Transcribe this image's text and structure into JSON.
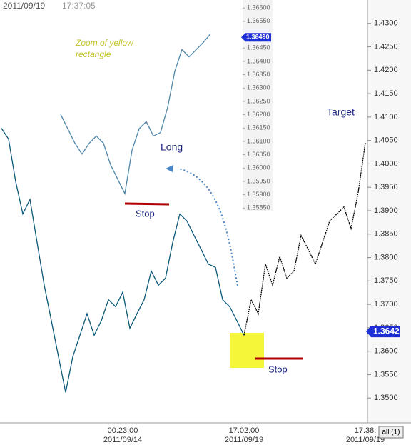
{
  "header": {
    "date": "2011/09/19",
    "time": "17:37:05"
  },
  "annotations": {
    "zoom_note": "Zoom of yellow rectangle",
    "long": "Long",
    "stop_zoom": "Stop",
    "stop_main": "Stop",
    "target": "Target"
  },
  "button": "all (1)",
  "chart_data": [
    {
      "type": "line",
      "categories": [
        null,
        null,
        null,
        null,
        null,
        null,
        null,
        null,
        null,
        null,
        null,
        null,
        null,
        null,
        null,
        null,
        null,
        "00:23:00",
        null,
        null,
        null,
        null,
        null,
        null,
        null,
        null,
        null,
        null,
        null,
        null,
        null,
        null,
        null,
        null,
        "17:02:00",
        null,
        null,
        null,
        null,
        null,
        null,
        null,
        null,
        null,
        null,
        null,
        null,
        null,
        null,
        null,
        null,
        "17:38:"
      ],
      "dates": [
        null,
        null,
        null,
        null,
        null,
        null,
        null,
        null,
        null,
        null,
        null,
        null,
        null,
        null,
        null,
        null,
        null,
        "2011/09/14",
        null,
        null,
        null,
        null,
        null,
        null,
        null,
        null,
        null,
        null,
        null,
        null,
        null,
        null,
        null,
        null,
        "2011/09/19",
        null,
        null,
        null,
        null,
        null,
        null,
        null,
        null,
        null,
        null,
        null,
        null,
        null,
        null,
        null,
        null,
        "2011/09/19"
      ],
      "series": [
        {
          "color": "#0b5878",
          "values": [
            1.4076,
            1.4053,
            1.3962,
            1.3893,
            1.3924,
            1.3832,
            1.3741,
            1.3665,
            1.3588,
            1.3512,
            1.3588,
            1.3634,
            1.368,
            1.3634,
            1.3665,
            1.371,
            1.3695,
            1.3726,
            1.3649,
            1.368,
            1.371,
            1.3771,
            1.3741,
            1.3756,
            1.3832,
            1.3893,
            1.3878,
            1.3847,
            1.3817,
            1.3786,
            1.3779,
            1.371,
            1.3695,
            1.3665,
            1.3634,
            null,
            null,
            null,
            null,
            null,
            null,
            null,
            null,
            null,
            null,
            null,
            null,
            null,
            null,
            null,
            null,
            null
          ]
        },
        {
          "color": "#000000",
          "values": [
            null,
            null,
            null,
            null,
            null,
            null,
            null,
            null,
            null,
            null,
            null,
            null,
            null,
            null,
            null,
            null,
            null,
            null,
            null,
            null,
            null,
            null,
            null,
            null,
            null,
            null,
            null,
            null,
            null,
            null,
            null,
            null,
            null,
            null,
            1.3634,
            1.371,
            1.368,
            1.3786,
            1.3741,
            1.3802,
            1.3756,
            1.3771,
            1.3847,
            1.3817,
            1.3786,
            1.3832,
            1.3878,
            1.3893,
            1.3908,
            1.3862,
            1.3939,
            1.4045
          ]
        }
      ],
      "ylim": [
        1.345,
        1.435
      ],
      "yticks": [
        {
          "value": 1.35,
          "label": "1.3500"
        },
        {
          "value": 1.355,
          "label": "1.3550"
        },
        {
          "value": 1.36,
          "label": "1.3600"
        },
        {
          "value": 1.365,
          "label": "1.3650"
        },
        {
          "value": 1.37,
          "label": "1.3700"
        },
        {
          "value": 1.375,
          "label": "1.3750"
        },
        {
          "value": 1.38,
          "label": "1.3800"
        },
        {
          "value": 1.385,
          "label": "1.3850"
        },
        {
          "value": 1.39,
          "label": "1.3900"
        },
        {
          "value": 1.395,
          "label": "1.3950"
        },
        {
          "value": 1.4,
          "label": "1.4000"
        },
        {
          "value": 1.405,
          "label": "1.4050"
        },
        {
          "value": 1.41,
          "label": "1.4100"
        },
        {
          "value": 1.415,
          "label": "1.4150"
        },
        {
          "value": 1.42,
          "label": "1.4200"
        },
        {
          "value": 1.425,
          "label": "1.4250"
        },
        {
          "value": 1.43,
          "label": "1.4300"
        }
      ],
      "last_price": {
        "value": 1.3642,
        "label": "1.3642"
      }
    },
    {
      "type": "line",
      "series": [
        {
          "color": "#4f86a8",
          "values": [
            1.36201,
            1.36147,
            1.36093,
            1.36052,
            1.36093,
            1.3612,
            1.36093,
            1.36012,
            1.35958,
            1.35904,
            1.36066,
            1.36147,
            1.36174,
            1.3612,
            1.36133,
            1.36228,
            1.36363,
            1.36444,
            1.36417,
            1.36444,
            1.36471,
            1.36503
          ]
        }
      ],
      "ylim": [
        1.3584,
        1.3663
      ],
      "yticks": [
        {
          "value": 1.3585,
          "label": "1.35850"
        },
        {
          "value": 1.359,
          "label": "1.35900"
        },
        {
          "value": 1.3595,
          "label": "1.35950"
        },
        {
          "value": 1.36,
          "label": "1.36000"
        },
        {
          "value": 1.3605,
          "label": "1.36050"
        },
        {
          "value": 1.361,
          "label": "1.36100"
        },
        {
          "value": 1.3615,
          "label": "1.36150"
        },
        {
          "value": 1.362,
          "label": "1.36200"
        },
        {
          "value": 1.3625,
          "label": "1.36250"
        },
        {
          "value": 1.363,
          "label": "1.36300"
        },
        {
          "value": 1.3635,
          "label": "1.36350"
        },
        {
          "value": 1.364,
          "label": "1.36400"
        },
        {
          "value": 1.3645,
          "label": "1.36450"
        },
        {
          "value": 1.3655,
          "label": "1.36550"
        },
        {
          "value": 1.366,
          "label": "1.36600"
        }
      ],
      "last_price": {
        "value": 1.3649,
        "label": "1.36490"
      }
    }
  ]
}
